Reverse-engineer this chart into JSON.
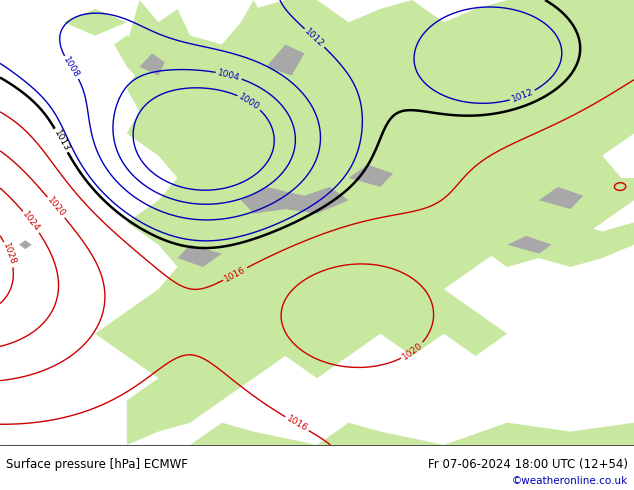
{
  "title_left": "Surface pressure [hPa] ECMWF",
  "title_right": "Fr 07-06-2024 18:00 UTC (12+54)",
  "copyright": "©weatheronline.co.uk",
  "bg_ocean_color": "#e8e8e8",
  "bg_land_color": "#c8e8a0",
  "mountain_color": "#a8a8a8",
  "bottom_bar_color": "#d8d8d8",
  "text_color_black": "#000000",
  "text_color_blue": "#0000bb",
  "text_color_red": "#cc0000",
  "figwidth": 6.34,
  "figheight": 4.9,
  "dpi": 100
}
